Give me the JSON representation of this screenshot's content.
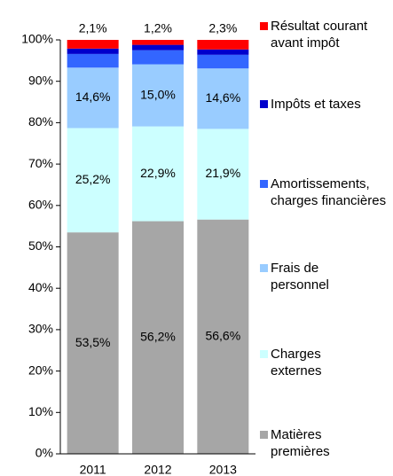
{
  "chart_data": {
    "type": "stacked-bar",
    "categories": [
      "2011",
      "2012",
      "2013"
    ],
    "ylim": [
      0,
      100
    ],
    "yticks": [
      {
        "value": 0,
        "label": "0%"
      },
      {
        "value": 10,
        "label": "10%"
      },
      {
        "value": 20,
        "label": "20%"
      },
      {
        "value": 30,
        "label": "30%"
      },
      {
        "value": 40,
        "label": "40%"
      },
      {
        "value": 50,
        "label": "50%"
      },
      {
        "value": 60,
        "label": "60%"
      },
      {
        "value": 70,
        "label": "70%"
      },
      {
        "value": 80,
        "label": "80%"
      },
      {
        "value": 90,
        "label": "90%"
      },
      {
        "value": 100,
        "label": "100%"
      }
    ],
    "series": [
      {
        "name": "Matières premières",
        "color": "#a6a6a6",
        "values": [
          53.5,
          56.2,
          56.6
        ],
        "value_labels": [
          "53,5%",
          "56,2%",
          "56,6%"
        ]
      },
      {
        "name": "Charges externes",
        "color": "#ccffff",
        "values": [
          25.2,
          22.9,
          21.9
        ],
        "value_labels": [
          "25,2%",
          "22,9%",
          "21,9%"
        ]
      },
      {
        "name": "Frais de personnel",
        "color": "#99ccff",
        "values": [
          14.6,
          15.0,
          14.6
        ],
        "value_labels": [
          "14,6%",
          "15,0%",
          "14,6%"
        ]
      },
      {
        "name": "Amortissements, charges financières",
        "color": "#3366ff",
        "values": [
          3.3,
          3.4,
          3.3
        ]
      },
      {
        "name": "Impôts et taxes",
        "color": "#0000cc",
        "values": [
          1.3,
          1.3,
          1.3
        ]
      },
      {
        "name": "Résultat courant avant impôt",
        "color": "#ff0000",
        "values": [
          2.1,
          1.2,
          2.3
        ],
        "value_labels": [
          "2,1%",
          "1,2%",
          "2,3%"
        ]
      }
    ]
  }
}
